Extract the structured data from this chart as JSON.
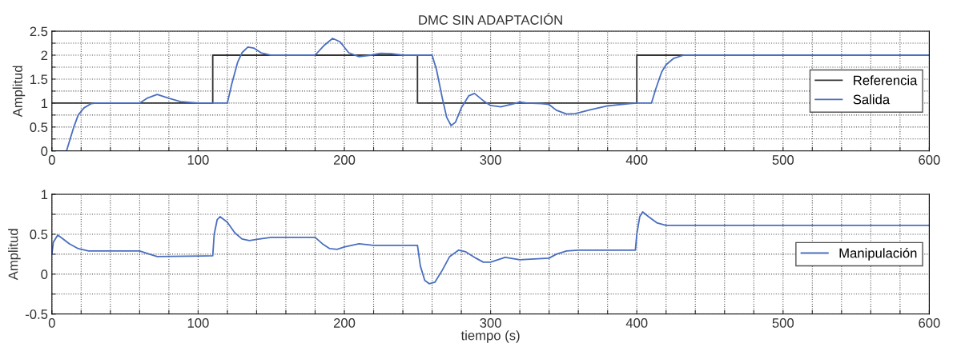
{
  "chart_data": [
    {
      "type": "line",
      "title": "DMC SIN ADAPTACIÓN",
      "ylabel": "Amplitud",
      "grid": true,
      "legend": "right",
      "xlim": [
        0,
        600
      ],
      "ylim": [
        0,
        2.5
      ],
      "xticks": [
        0,
        {
          "value": 20,
          "label": null
        },
        {
          "value": 40,
          "label": null
        },
        {
          "value": 60,
          "label": null
        },
        {
          "value": 80,
          "label": null
        },
        100,
        {
          "value": 120,
          "label": null
        },
        {
          "value": 140,
          "label": null
        },
        {
          "value": 160,
          "label": null
        },
        {
          "value": 180,
          "label": null
        },
        200,
        {
          "value": 220,
          "label": null
        },
        {
          "value": 240,
          "label": null
        },
        {
          "value": 260,
          "label": null
        },
        {
          "value": 280,
          "label": null
        },
        300,
        {
          "value": 320,
          "label": null
        },
        {
          "value": 340,
          "label": null
        },
        {
          "value": 360,
          "label": null
        },
        {
          "value": 380,
          "label": null
        },
        400,
        {
          "value": 420,
          "label": null
        },
        {
          "value": 440,
          "label": null
        },
        {
          "value": 460,
          "label": null
        },
        {
          "value": 480,
          "label": null
        },
        500,
        {
          "value": 520,
          "label": null
        },
        {
          "value": 540,
          "label": null
        },
        {
          "value": 560,
          "label": null
        },
        {
          "value": 580,
          "label": null
        },
        600
      ],
      "yticks": [
        0,
        {
          "value": 0.25,
          "label": null
        },
        0.5,
        {
          "value": 0.75,
          "label": null
        },
        1,
        {
          "value": 1.25,
          "label": null
        },
        1.5,
        {
          "value": 1.75,
          "label": null
        },
        2,
        {
          "value": 2.25,
          "label": null
        },
        2.5
      ],
      "series": [
        {
          "name": "Referencia",
          "color": "#333333",
          "x": [
            0,
            110,
            110,
            250,
            250,
            400,
            400,
            600
          ],
          "values": [
            1,
            1,
            2,
            2,
            1,
            1,
            2,
            2
          ]
        },
        {
          "name": "Salida",
          "color": "#4a6fc0",
          "x": [
            0,
            10,
            12,
            15,
            18,
            22,
            27,
            30,
            60,
            65,
            72,
            80,
            88,
            100,
            120,
            123,
            127,
            130,
            134,
            138,
            143,
            150,
            160,
            180,
            186,
            192,
            197,
            203,
            210,
            218,
            225,
            232,
            240,
            260,
            263,
            267,
            270,
            273,
            276,
            280,
            285,
            289,
            295,
            300,
            307,
            315,
            320,
            325,
            335,
            340,
            345,
            352,
            358,
            368,
            380,
            395,
            400,
            410,
            413,
            417,
            420,
            425,
            432,
            600
          ],
          "values": [
            0,
            0,
            0.2,
            0.5,
            0.75,
            0.9,
            0.99,
            1,
            1,
            1.1,
            1.18,
            1.1,
            1.03,
            1,
            1,
            1.4,
            1.85,
            2.05,
            2.17,
            2.15,
            2.05,
            2.0,
            2.0,
            2.0,
            2.2,
            2.35,
            2.28,
            2.05,
            1.97,
            2.0,
            2.04,
            2.03,
            2.0,
            2.0,
            1.7,
            1.1,
            0.7,
            0.53,
            0.6,
            0.9,
            1.15,
            1.2,
            1.05,
            0.95,
            0.92,
            0.98,
            1.02,
            1.0,
            0.99,
            0.97,
            0.85,
            0.77,
            0.78,
            0.86,
            0.94,
            0.99,
            1.0,
            1.0,
            1.3,
            1.65,
            1.8,
            1.93,
            2.0,
            2.0
          ]
        }
      ]
    },
    {
      "type": "line",
      "ylabel": "Amplitud",
      "xlabel": "tiempo (s)",
      "grid": true,
      "legend": "right",
      "xlim": [
        0,
        600
      ],
      "ylim": [
        -0.5,
        1
      ],
      "xticks": [
        0,
        {
          "value": 20,
          "label": null
        },
        {
          "value": 40,
          "label": null
        },
        {
          "value": 60,
          "label": null
        },
        {
          "value": 80,
          "label": null
        },
        100,
        {
          "value": 120,
          "label": null
        },
        {
          "value": 140,
          "label": null
        },
        {
          "value": 160,
          "label": null
        },
        {
          "value": 180,
          "label": null
        },
        200,
        {
          "value": 220,
          "label": null
        },
        {
          "value": 240,
          "label": null
        },
        {
          "value": 260,
          "label": null
        },
        {
          "value": 280,
          "label": null
        },
        300,
        {
          "value": 320,
          "label": null
        },
        {
          "value": 340,
          "label": null
        },
        {
          "value": 360,
          "label": null
        },
        {
          "value": 380,
          "label": null
        },
        400,
        {
          "value": 420,
          "label": null
        },
        {
          "value": 440,
          "label": null
        },
        {
          "value": 460,
          "label": null
        },
        {
          "value": 480,
          "label": null
        },
        500,
        {
          "value": 520,
          "label": null
        },
        {
          "value": 540,
          "label": null
        },
        {
          "value": 560,
          "label": null
        },
        {
          "value": 580,
          "label": null
        },
        600
      ],
      "yticks": [
        -0.5,
        {
          "value": -0.25,
          "label": null
        },
        0,
        {
          "value": 0.25,
          "label": null
        },
        0.5,
        {
          "value": 0.75,
          "label": null
        },
        1
      ],
      "series": [
        {
          "name": "Manipulación",
          "color": "#4a6fc0",
          "x": [
            0,
            1,
            4,
            7,
            12,
            18,
            25,
            60,
            65,
            72,
            110,
            111,
            113,
            115,
            120,
            125,
            130,
            135,
            142,
            150,
            180,
            185,
            190,
            195,
            200,
            210,
            220,
            250,
            252,
            255,
            258,
            262,
            267,
            272,
            278,
            283,
            290,
            295,
            300,
            305,
            310,
            320,
            330,
            340,
            345,
            352,
            360,
            399,
            400,
            402,
            404,
            408,
            414,
            420,
            600
          ],
          "values": [
            0.25,
            0.4,
            0.49,
            0.45,
            0.38,
            0.32,
            0.29,
            0.29,
            0.26,
            0.22,
            0.23,
            0.5,
            0.68,
            0.72,
            0.65,
            0.52,
            0.44,
            0.42,
            0.44,
            0.46,
            0.46,
            0.38,
            0.32,
            0.31,
            0.34,
            0.38,
            0.36,
            0.36,
            0.1,
            -0.08,
            -0.12,
            -0.1,
            0.05,
            0.22,
            0.3,
            0.28,
            0.2,
            0.15,
            0.15,
            0.18,
            0.21,
            0.18,
            0.19,
            0.2,
            0.25,
            0.29,
            0.3,
            0.3,
            0.5,
            0.72,
            0.78,
            0.72,
            0.64,
            0.61,
            0.61
          ]
        }
      ]
    }
  ]
}
